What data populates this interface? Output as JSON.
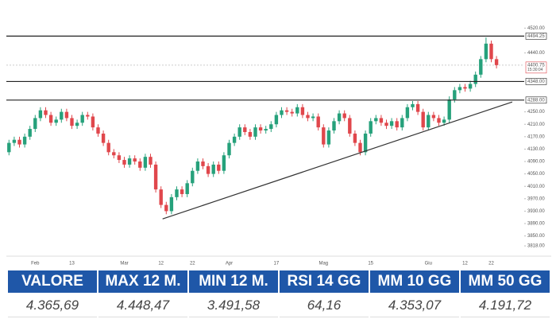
{
  "chart_data": {
    "type": "candlestick",
    "categories": [
      null,
      null,
      null,
      null,
      null,
      "Feb",
      null,
      null,
      null,
      null,
      null,
      null,
      "13",
      null,
      null,
      null,
      null,
      null,
      null,
      null,
      null,
      null,
      "Mar",
      null,
      null,
      null,
      null,
      null,
      null,
      "12",
      null,
      null,
      null,
      null,
      null,
      "22",
      null,
      null,
      null,
      null,
      null,
      null,
      "Apr",
      null,
      null,
      null,
      null,
      null,
      null,
      null,
      null,
      "17",
      null,
      null,
      null,
      null,
      null,
      null,
      null,
      null,
      "Mag",
      null,
      null,
      null,
      null,
      null,
      null,
      null,
      null,
      "15",
      null,
      null,
      null,
      null,
      null,
      null,
      null,
      null,
      null,
      null,
      "Giu",
      null,
      null,
      null,
      null,
      null,
      null,
      "12",
      null,
      null,
      null,
      null,
      "22",
      null
    ],
    "candles": [
      [
        4120,
        4160,
        4110,
        4150
      ],
      [
        4150,
        4170,
        4140,
        4160
      ],
      [
        4160,
        4170,
        4135,
        4145
      ],
      [
        4145,
        4180,
        4135,
        4170
      ],
      [
        4170,
        4205,
        4160,
        4195
      ],
      [
        4195,
        4240,
        4185,
        4230
      ],
      [
        4230,
        4265,
        4220,
        4255
      ],
      [
        4255,
        4265,
        4230,
        4240
      ],
      [
        4240,
        4250,
        4205,
        4215
      ],
      [
        4215,
        4235,
        4205,
        4225
      ],
      [
        4225,
        4260,
        4215,
        4250
      ],
      [
        4250,
        4260,
        4220,
        4230
      ],
      [
        4230,
        4240,
        4195,
        4205
      ],
      [
        4205,
        4225,
        4195,
        4215
      ],
      [
        4215,
        4250,
        4205,
        4240
      ],
      [
        4240,
        4250,
        4225,
        4235
      ],
      [
        4235,
        4245,
        4190,
        4200
      ],
      [
        4200,
        4210,
        4170,
        4180
      ],
      [
        4180,
        4190,
        4140,
        4150
      ],
      [
        4150,
        4160,
        4110,
        4120
      ],
      [
        4120,
        4130,
        4100,
        4110
      ],
      [
        4110,
        4120,
        4085,
        4095
      ],
      [
        4095,
        4105,
        4070,
        4080
      ],
      [
        4080,
        4110,
        4070,
        4100
      ],
      [
        4100,
        4110,
        4080,
        4090
      ],
      [
        4090,
        4100,
        4060,
        4070
      ],
      [
        4070,
        4115,
        4060,
        4105
      ],
      [
        4105,
        4115,
        4070,
        4080
      ],
      [
        4080,
        4090,
        3990,
        4000
      ],
      [
        4000,
        4010,
        3940,
        3950
      ],
      [
        3950,
        3960,
        3920,
        3930
      ],
      [
        3930,
        3985,
        3920,
        3975
      ],
      [
        3975,
        4010,
        3965,
        4000
      ],
      [
        4000,
        4010,
        3975,
        3985
      ],
      [
        3985,
        4030,
        3975,
        4020
      ],
      [
        4020,
        4070,
        4010,
        4060
      ],
      [
        4060,
        4100,
        4050,
        4090
      ],
      [
        4090,
        4100,
        4065,
        4075
      ],
      [
        4075,
        4085,
        4040,
        4050
      ],
      [
        4050,
        4090,
        4040,
        4080
      ],
      [
        4080,
        4090,
        4050,
        4060
      ],
      [
        4060,
        4120,
        4050,
        4110
      ],
      [
        4110,
        4160,
        4100,
        4150
      ],
      [
        4150,
        4180,
        4140,
        4170
      ],
      [
        4170,
        4210,
        4160,
        4200
      ],
      [
        4200,
        4210,
        4175,
        4185
      ],
      [
        4185,
        4195,
        4160,
        4170
      ],
      [
        4170,
        4210,
        4160,
        4200
      ],
      [
        4200,
        4210,
        4180,
        4190
      ],
      [
        4190,
        4205,
        4180,
        4195
      ],
      [
        4195,
        4220,
        4185,
        4210
      ],
      [
        4210,
        4250,
        4200,
        4240
      ],
      [
        4240,
        4265,
        4230,
        4255
      ],
      [
        4255,
        4265,
        4240,
        4250
      ],
      [
        4250,
        4260,
        4235,
        4245
      ],
      [
        4245,
        4275,
        4235,
        4265
      ],
      [
        4265,
        4275,
        4230,
        4240
      ],
      [
        4240,
        4250,
        4220,
        4230
      ],
      [
        4230,
        4245,
        4220,
        4235
      ],
      [
        4235,
        4245,
        4190,
        4200
      ],
      [
        4200,
        4210,
        4135,
        4145
      ],
      [
        4145,
        4200,
        4135,
        4190
      ],
      [
        4190,
        4230,
        4180,
        4220
      ],
      [
        4220,
        4255,
        4210,
        4245
      ],
      [
        4245,
        4255,
        4220,
        4230
      ],
      [
        4230,
        4240,
        4170,
        4180
      ],
      [
        4180,
        4190,
        4140,
        4150
      ],
      [
        4150,
        4160,
        4110,
        4120
      ],
      [
        4120,
        4190,
        4110,
        4180
      ],
      [
        4180,
        4230,
        4170,
        4220
      ],
      [
        4220,
        4240,
        4210,
        4230
      ],
      [
        4230,
        4240,
        4205,
        4215
      ],
      [
        4215,
        4225,
        4195,
        4205
      ],
      [
        4205,
        4230,
        4195,
        4220
      ],
      [
        4220,
        4230,
        4190,
        4200
      ],
      [
        4200,
        4240,
        4190,
        4230
      ],
      [
        4230,
        4275,
        4220,
        4265
      ],
      [
        4265,
        4285,
        4255,
        4275
      ],
      [
        4275,
        4285,
        4240,
        4250
      ],
      [
        4250,
        4260,
        4190,
        4200
      ],
      [
        4200,
        4250,
        4190,
        4240
      ],
      [
        4240,
        4250,
        4220,
        4230
      ],
      [
        4230,
        4240,
        4205,
        4215
      ],
      [
        4215,
        4235,
        4205,
        4225
      ],
      [
        4225,
        4300,
        4215,
        4290
      ],
      [
        4290,
        4330,
        4280,
        4320
      ],
      [
        4320,
        4340,
        4310,
        4330
      ],
      [
        4330,
        4340,
        4315,
        4325
      ],
      [
        4325,
        4350,
        4315,
        4340
      ],
      [
        4340,
        4380,
        4330,
        4370
      ],
      [
        4370,
        4430,
        4360,
        4420
      ],
      [
        4420,
        4490,
        4410,
        4470
      ],
      [
        4470,
        4480,
        4410,
        4420
      ],
      [
        4420,
        4430,
        4390,
        4400.75
      ]
    ],
    "up_color": "#26a17b",
    "down_color": "#e0474c",
    "ylim": [
      3790,
      4585
    ],
    "yticks": [
      {
        "value": 4520,
        "label": "4520.00"
      },
      {
        "value": 4440,
        "label": "4440.00"
      },
      {
        "value": 4250,
        "label": "4250.00"
      },
      {
        "value": 4210,
        "label": "4210.00"
      },
      {
        "value": 4170,
        "label": "4170.00"
      },
      {
        "value": 4130,
        "label": "4130.00"
      },
      {
        "value": 4090,
        "label": "4090.00"
      },
      {
        "value": 4050,
        "label": "4050.00"
      },
      {
        "value": 4010,
        "label": "4010.00"
      },
      {
        "value": 3970,
        "label": "3970.00"
      },
      {
        "value": 3930,
        "label": "3930.00"
      },
      {
        "value": 3890,
        "label": "3890.00"
      },
      {
        "value": 3850,
        "label": "3850.00"
      },
      {
        "value": 3818,
        "label": "3818.00"
      }
    ],
    "levels": [
      {
        "value": 4494.25,
        "label": "4494.25"
      },
      {
        "value": 4348,
        "label": "4348.00"
      },
      {
        "value": 4288,
        "label": "4288.00"
      }
    ],
    "last_price": {
      "value": 4400.75,
      "label": "4400.75",
      "time": "15:30:04"
    },
    "trendline": {
      "x": [
        29.3,
        96
      ],
      "y": [
        3905,
        4282
      ]
    }
  },
  "table": {
    "headers": [
      "VALORE",
      "MAX 12 M.",
      "MIN 12 M.",
      "RSI 14 GG",
      "MM 10 GG",
      "MM 50 GG"
    ],
    "values": [
      "4.365,69",
      "4.448,47",
      "3.491,58",
      "64,16",
      "4.353,07",
      "4.191,72"
    ]
  }
}
